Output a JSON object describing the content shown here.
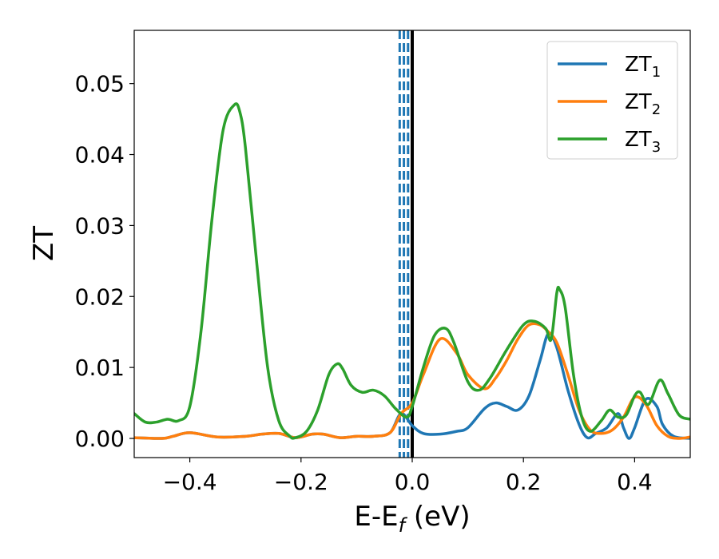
{
  "chart_data": {
    "type": "line",
    "title": "",
    "xlabel": {
      "main": "E-E",
      "sub": "f",
      "tail": " (eV)"
    },
    "ylabel": "ZT",
    "xlim": [
      -0.5,
      0.5
    ],
    "ylim": [
      -0.0027,
      0.0575
    ],
    "x_ticks": [
      -0.4,
      -0.2,
      0.0,
      0.2,
      0.4
    ],
    "x_tick_labels": [
      "−0.4",
      "−0.2",
      "0.0",
      "0.2",
      "0.4"
    ],
    "y_ticks": [
      0.0,
      0.01,
      0.02,
      0.03,
      0.04,
      0.05
    ],
    "y_tick_labels": [
      "0.00",
      "0.01",
      "0.02",
      "0.03",
      "0.04",
      "0.05"
    ],
    "grid": false,
    "legend_position": "top-right",
    "vertical_lines": [
      {
        "x": 0.0,
        "style": "solid",
        "color": "#000000"
      },
      {
        "x": -0.0225,
        "style": "dashed",
        "color": "#1f77b4"
      },
      {
        "x": -0.015,
        "style": "dashed",
        "color": "#1f77b4"
      },
      {
        "x": -0.0075,
        "style": "dashed",
        "color": "#1f77b4"
      }
    ],
    "series": [
      {
        "name": "ZT",
        "sub": "1",
        "color": "#1f77b4",
        "x": [
          -0.5,
          -0.45,
          -0.43,
          -0.4,
          -0.35,
          -0.3,
          -0.27,
          -0.24,
          -0.21,
          -0.18,
          -0.16,
          -0.13,
          -0.1,
          -0.07,
          -0.04,
          -0.02,
          0.0,
          0.02,
          0.05,
          0.08,
          0.1,
          0.13,
          0.15,
          0.17,
          0.19,
          0.21,
          0.23,
          0.245,
          0.26,
          0.28,
          0.3,
          0.315,
          0.33,
          0.35,
          0.37,
          0.38,
          0.39,
          0.4,
          0.42,
          0.44,
          0.45,
          0.47,
          0.5
        ],
        "y": [
          0.0001,
          0.0,
          0.0003,
          0.0008,
          0.0002,
          0.0003,
          0.0006,
          0.0007,
          0.0001,
          0.0006,
          0.0006,
          0.0001,
          0.0003,
          0.0003,
          0.0008,
          0.0035,
          0.0018,
          0.0007,
          0.0006,
          0.001,
          0.0015,
          0.0042,
          0.005,
          0.0045,
          0.004,
          0.006,
          0.011,
          0.0148,
          0.0128,
          0.0068,
          0.002,
          0.0001,
          0.0007,
          0.0015,
          0.0035,
          0.0015,
          0.0,
          0.0015,
          0.0055,
          0.0045,
          0.002,
          0.0003,
          0.0
        ]
      },
      {
        "name": "ZT",
        "sub": "2",
        "color": "#ff7f0e",
        "x": [
          -0.5,
          -0.45,
          -0.43,
          -0.4,
          -0.35,
          -0.3,
          -0.27,
          -0.24,
          -0.21,
          -0.18,
          -0.16,
          -0.13,
          -0.1,
          -0.07,
          -0.04,
          -0.02,
          0.0,
          0.02,
          0.05,
          0.08,
          0.1,
          0.13,
          0.15,
          0.17,
          0.19,
          0.21,
          0.23,
          0.245,
          0.26,
          0.28,
          0.3,
          0.32,
          0.34,
          0.36,
          0.38,
          0.4,
          0.42,
          0.44,
          0.46,
          0.48,
          0.5
        ],
        "y": [
          0.0001,
          0.0,
          0.0003,
          0.0008,
          0.0002,
          0.0003,
          0.0006,
          0.0007,
          0.0001,
          0.0006,
          0.0006,
          0.0001,
          0.0003,
          0.0003,
          0.0008,
          0.0035,
          0.005,
          0.009,
          0.014,
          0.012,
          0.009,
          0.007,
          0.0085,
          0.011,
          0.014,
          0.016,
          0.016,
          0.015,
          0.0135,
          0.009,
          0.004,
          0.0012,
          0.0007,
          0.0012,
          0.003,
          0.0058,
          0.0048,
          0.0018,
          0.0003,
          0.0,
          0.0002
        ]
      },
      {
        "name": "ZT",
        "sub": "3",
        "color": "#2ca02c",
        "x": [
          -0.5,
          -0.48,
          -0.46,
          -0.44,
          -0.42,
          -0.4,
          -0.38,
          -0.36,
          -0.34,
          -0.32,
          -0.31,
          -0.3,
          -0.28,
          -0.26,
          -0.24,
          -0.22,
          -0.21,
          -0.19,
          -0.17,
          -0.15,
          -0.135,
          -0.125,
          -0.11,
          -0.09,
          -0.07,
          -0.05,
          -0.03,
          -0.01,
          0.0,
          0.02,
          0.04,
          0.06,
          0.075,
          0.1,
          0.12,
          0.14,
          0.17,
          0.2,
          0.22,
          0.24,
          0.25,
          0.26,
          0.265,
          0.275,
          0.29,
          0.305,
          0.32,
          0.34,
          0.355,
          0.37,
          0.385,
          0.4,
          0.41,
          0.425,
          0.445,
          0.46,
          0.48,
          0.5
        ],
        "y": [
          0.0035,
          0.0023,
          0.0023,
          0.0027,
          0.0025,
          0.0045,
          0.015,
          0.031,
          0.0435,
          0.047,
          0.046,
          0.041,
          0.025,
          0.01,
          0.0025,
          0.0003,
          0.0001,
          0.001,
          0.004,
          0.009,
          0.0105,
          0.0098,
          0.0075,
          0.0065,
          0.0068,
          0.006,
          0.0042,
          0.003,
          0.0045,
          0.01,
          0.0145,
          0.0155,
          0.0135,
          0.008,
          0.0068,
          0.0085,
          0.0125,
          0.016,
          0.0165,
          0.0155,
          0.014,
          0.0205,
          0.021,
          0.0185,
          0.009,
          0.003,
          0.001,
          0.0025,
          0.004,
          0.003,
          0.0033,
          0.006,
          0.0065,
          0.0048,
          0.0082,
          0.0063,
          0.0033,
          0.0027
        ]
      }
    ]
  }
}
